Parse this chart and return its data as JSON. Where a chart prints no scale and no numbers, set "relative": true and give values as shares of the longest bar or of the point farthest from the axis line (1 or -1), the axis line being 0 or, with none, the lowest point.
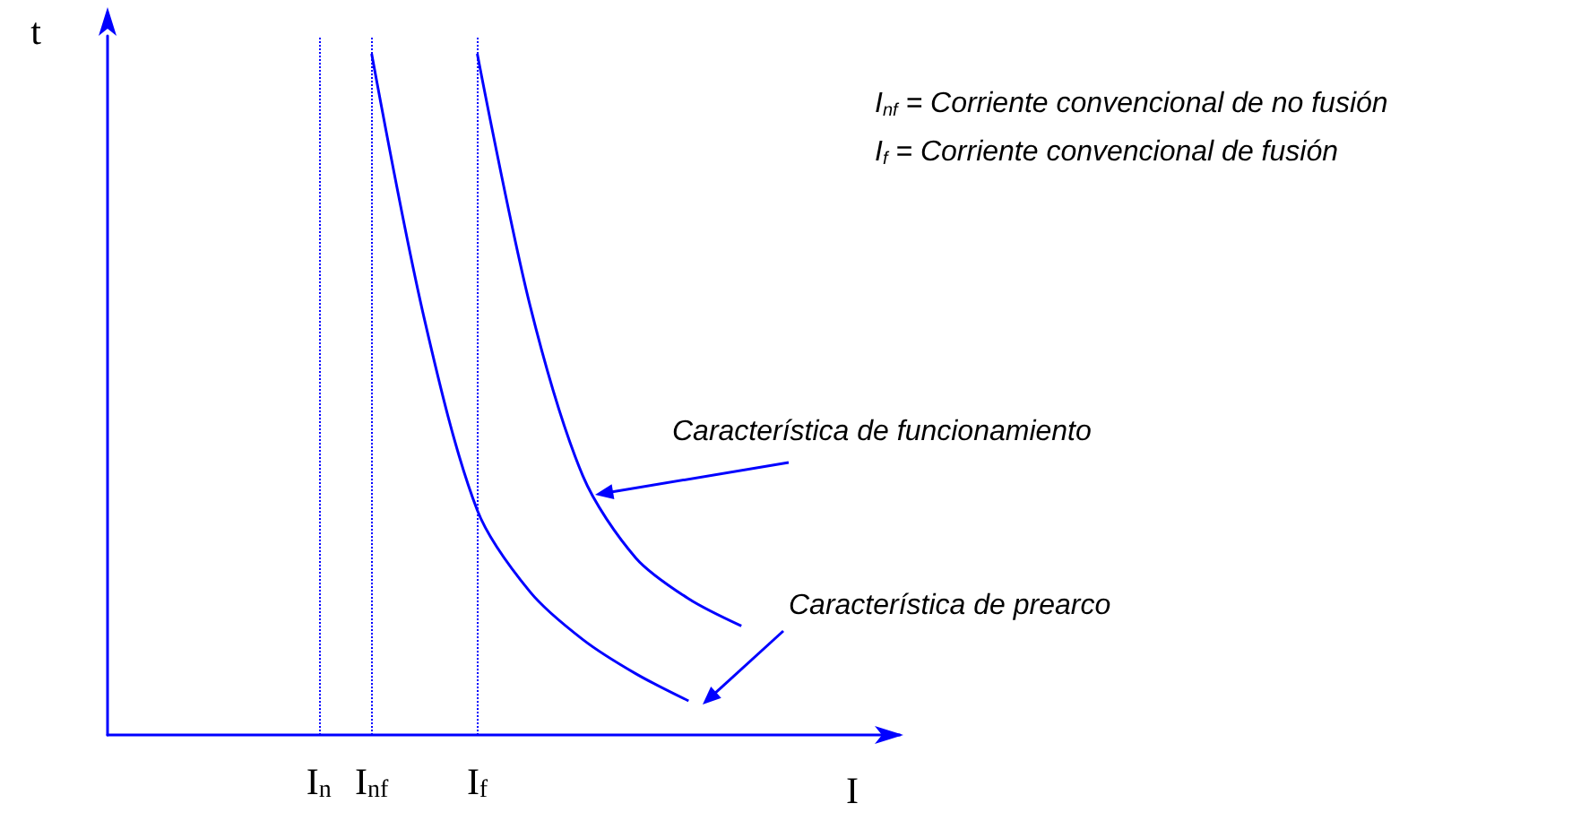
{
  "chart_data": {
    "type": "line",
    "relative": true,
    "xlabel": "I",
    "ylabel": "t",
    "marker": "none",
    "line_style": "solid",
    "categories": [
      null,
      null,
      null,
      null,
      "I$_{n}$",
      "I$_{nf}$",
      null,
      "I$_{f}$",
      null,
      null,
      null,
      null,
      null,
      null,
      null,
      null
    ],
    "series": [
      {
        "color": "#0000ff",
        "values": [
          null,
          null,
          null,
          null,
          null,
          1,
          0.61,
          0.33,
          0.21,
          0.14,
          0.09,
          0.05,
          null,
          null,
          null,
          null
        ]
      },
      {
        "color": "#0000ff",
        "values": [
          null,
          null,
          null,
          null,
          null,
          null,
          null,
          1,
          0.63,
          0.38,
          0.26,
          0.2,
          0.16,
          null,
          null,
          null
        ]
      }
    ],
    "ref_lines": [
      {
        "axis": "x",
        "value": "I$_{n}$",
        "color": "#0000ff",
        "line_style": "dotted"
      },
      {
        "axis": "x",
        "value": "I$_{nf}$",
        "color": "#0000ff",
        "line_style": "dotted"
      },
      {
        "axis": "x",
        "value": "I$_{f}$",
        "color": "#0000ff",
        "line_style": "dotted"
      }
    ],
    "annotations": [
      "I$_{nf}$ = Corriente convencional de no fusión",
      "I$_{f}$ = Corriente convencional de fusión",
      "Característica de funcionamiento",
      "Característica de prearco"
    ]
  }
}
